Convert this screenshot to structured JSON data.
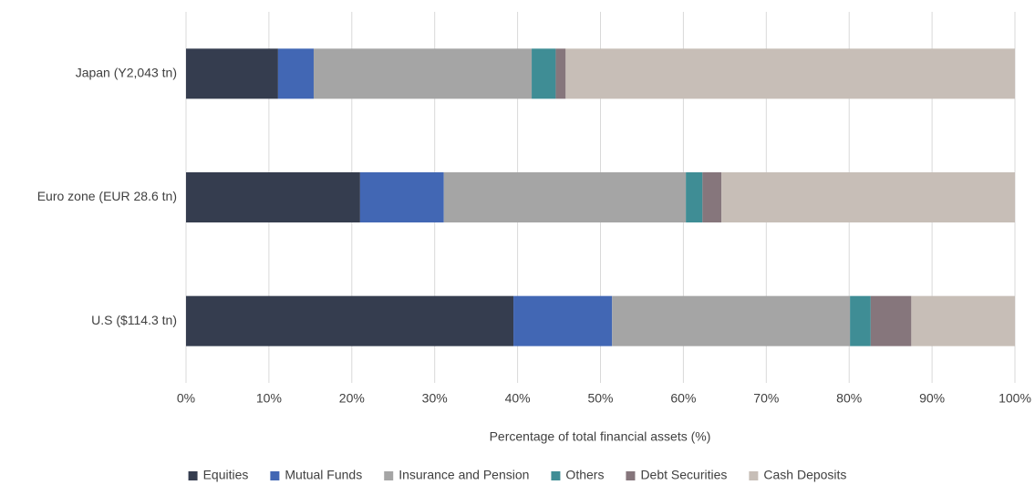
{
  "chart_data": {
    "type": "stacked-bar-horizontal",
    "x_label": "Percentage of total financial assets (%)",
    "categories": [
      "Japan (Y2,043 tn)",
      "Euro zone (EUR 28.6 tn)",
      "U.S ($114.3 tn)"
    ],
    "series": [
      {
        "name": "Equities",
        "color": "#353d4f",
        "values": [
          11.1,
          21.0,
          39.5
        ]
      },
      {
        "name": "Mutual Funds",
        "color": "#4267b4",
        "values": [
          4.3,
          10.1,
          11.9
        ]
      },
      {
        "name": "Insurance and Pension",
        "color": "#a5a5a5",
        "values": [
          26.3,
          29.2,
          28.7
        ]
      },
      {
        "name": "Others",
        "color": "#3f8d95",
        "values": [
          2.9,
          2.0,
          2.5
        ]
      },
      {
        "name": "Debt Securities",
        "color": "#86767c",
        "values": [
          1.2,
          2.3,
          4.9
        ]
      },
      {
        "name": "Cash Deposits",
        "color": "#c7beb7",
        "values": [
          54.2,
          35.4,
          12.5
        ]
      }
    ],
    "xlim": [
      0,
      100
    ],
    "xticks": [
      {
        "value": 0,
        "label": "0%"
      },
      {
        "value": 10,
        "label": "10%"
      },
      {
        "value": 20,
        "label": "20%"
      },
      {
        "value": 30,
        "label": "30%"
      },
      {
        "value": 40,
        "label": "40%"
      },
      {
        "value": 50,
        "label": "50%"
      },
      {
        "value": 60,
        "label": "60%"
      },
      {
        "value": 70,
        "label": "70%"
      },
      {
        "value": 80,
        "label": "80%"
      },
      {
        "value": 90,
        "label": "90%"
      },
      {
        "value": 100,
        "label": "100%"
      }
    ],
    "grid": true,
    "legend": "bottom"
  }
}
